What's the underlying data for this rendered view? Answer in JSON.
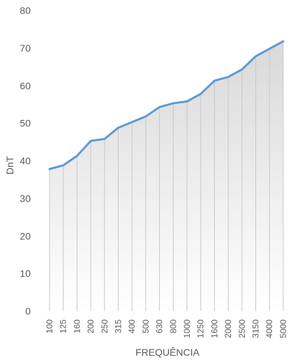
{
  "chart_data": {
    "type": "area",
    "xlabel": "FREQUÊNCIA",
    "ylabel": "DnT",
    "ylim": [
      0,
      80
    ],
    "yticks": [
      0,
      10,
      20,
      30,
      40,
      50,
      60,
      70,
      80
    ],
    "categories": [
      "100",
      "125",
      "160",
      "200",
      "250",
      "315",
      "400",
      "500",
      "630",
      "800",
      "1000",
      "1250",
      "1600",
      "2000",
      "2500",
      "3150",
      "4000",
      "5000"
    ],
    "values": [
      37.8,
      38.8,
      41.3,
      45.3,
      45.8,
      48.8,
      50.3,
      51.8,
      54.3,
      55.3,
      55.8,
      57.8,
      61.3,
      62.3,
      64.3,
      67.8,
      69.8,
      71.8
    ],
    "grid": false,
    "colors": {
      "line": "#5b9bd5",
      "fill_top": "#d9d9d9",
      "fill_bottom": "#ffffff",
      "drop_lines": "#c8c8c8",
      "text": "#595959"
    }
  }
}
